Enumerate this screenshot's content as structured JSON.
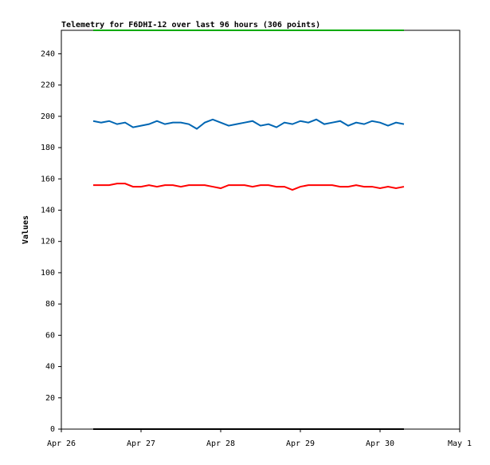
{
  "chart_data": {
    "type": "line",
    "title": "Telemetry for F6DHI-12 over last 96 hours (306 points)",
    "ylabel": "Values",
    "x": [
      26.4,
      26.5,
      26.6,
      26.7,
      26.8,
      26.9,
      27.0,
      27.1,
      27.2,
      27.3,
      27.4,
      27.5,
      27.6,
      27.7,
      27.8,
      27.9,
      28.0,
      28.1,
      28.2,
      28.3,
      28.4,
      28.5,
      28.6,
      28.7,
      28.8,
      28.9,
      29.0,
      29.1,
      29.2,
      29.3,
      29.4,
      29.5,
      29.6,
      29.7,
      29.8,
      29.9,
      30.0,
      30.1,
      30.2,
      30.3
    ],
    "series": [
      {
        "color": "#0066b3",
        "values": [
          197,
          196,
          197,
          195,
          196,
          193,
          194,
          195,
          197,
          195,
          196,
          196,
          195,
          192,
          196,
          198,
          196,
          194,
          195,
          196,
          197,
          194,
          195,
          193,
          196,
          195,
          197,
          196,
          198,
          195,
          196,
          197,
          194,
          196,
          195,
          197,
          196,
          194,
          196,
          195
        ]
      },
      {
        "color": "#ff0000",
        "values": [
          156,
          156,
          156,
          157,
          157,
          155,
          155,
          156,
          155,
          156,
          156,
          155,
          156,
          156,
          156,
          155,
          154,
          156,
          156,
          156,
          155,
          156,
          156,
          155,
          155,
          153,
          155,
          156,
          156,
          156,
          156,
          155,
          155,
          156,
          155,
          155,
          154,
          155,
          154,
          155
        ]
      },
      {
        "color": "#00aa00",
        "values": [
          255,
          255,
          255,
          255,
          255,
          255,
          255,
          255,
          255,
          255,
          255,
          255,
          255,
          255,
          255,
          255,
          255,
          255,
          255,
          255,
          255,
          255,
          255,
          255,
          255,
          255,
          255,
          255,
          255,
          255,
          255,
          255,
          255,
          255,
          255,
          255,
          255,
          255,
          255,
          255
        ]
      },
      {
        "color": "#000000",
        "values": [
          0,
          0,
          0,
          0,
          0,
          0,
          0,
          0,
          0,
          0,
          0,
          0,
          0,
          0,
          0,
          0,
          0,
          0,
          0,
          0,
          0,
          0,
          0,
          0,
          0,
          0,
          0,
          0,
          0,
          0,
          0,
          0,
          0,
          0,
          0,
          0,
          0,
          0,
          0,
          0
        ]
      }
    ],
    "xlim": [
      26,
      31
    ],
    "xticks": [
      {
        "value": 26,
        "label": "Apr 26"
      },
      {
        "value": 27,
        "label": "Apr 27"
      },
      {
        "value": 28,
        "label": "Apr 28"
      },
      {
        "value": 29,
        "label": "Apr 29"
      },
      {
        "value": 30,
        "label": "Apr 30"
      },
      {
        "value": 31,
        "label": "May 1"
      }
    ],
    "ylim": [
      0,
      255
    ],
    "yticks": [
      0,
      20,
      40,
      60,
      80,
      100,
      120,
      140,
      160,
      180,
      200,
      220,
      240
    ]
  }
}
